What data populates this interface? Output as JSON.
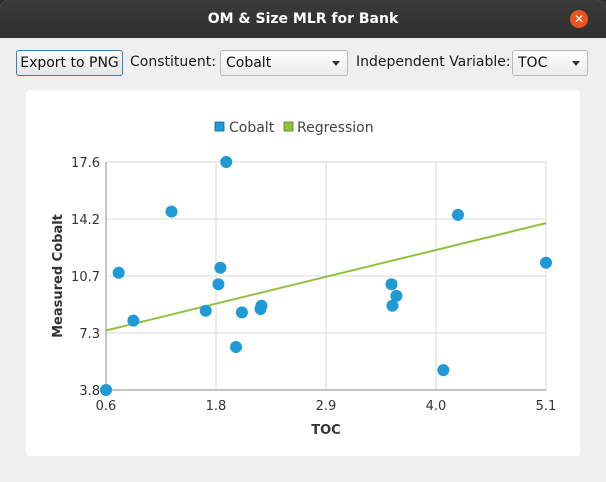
{
  "window": {
    "title": "OM & Size MLR for Bank"
  },
  "toolbar": {
    "export_label": "Export to PNG",
    "constituent_label": "Constituent:",
    "constituent_value": "Cobalt",
    "independent_label": "Independent Variable:",
    "independent_value": "TOC"
  },
  "icons": {
    "close": "close-icon",
    "dropdown": "chevron-down-icon"
  },
  "colors": {
    "points": "#1e9bd7",
    "regression": "#8fc13f",
    "close": "#e95420"
  },
  "chart_data": {
    "type": "scatter",
    "xlabel": "TOC",
    "ylabel": "Measured Cobalt",
    "xlim": [
      0.6,
      5.1
    ],
    "ylim": [
      3.8,
      17.6
    ],
    "xticks": [
      "0.6",
      "1.8",
      "2.9",
      "4.0",
      "5.1"
    ],
    "yticks": [
      "3.8",
      "7.3",
      "10.7",
      "14.2",
      "17.6"
    ],
    "grid": true,
    "legend_position": "top-center",
    "series": [
      {
        "name": "Cobalt",
        "kind": "points",
        "x": [
          0.6,
          0.73,
          0.88,
          1.27,
          1.62,
          1.75,
          1.77,
          1.83,
          1.93,
          1.99,
          2.18,
          2.19,
          3.52,
          3.53,
          3.57,
          4.05,
          4.2,
          5.1
        ],
        "y": [
          3.8,
          10.9,
          8.0,
          14.6,
          8.6,
          10.2,
          11.2,
          17.6,
          6.4,
          8.5,
          8.7,
          8.9,
          10.2,
          8.9,
          9.5,
          5.0,
          14.4,
          11.5
        ]
      },
      {
        "name": "Regression",
        "kind": "line",
        "x": [
          0.6,
          5.1
        ],
        "y": [
          7.4,
          13.9
        ]
      }
    ]
  }
}
